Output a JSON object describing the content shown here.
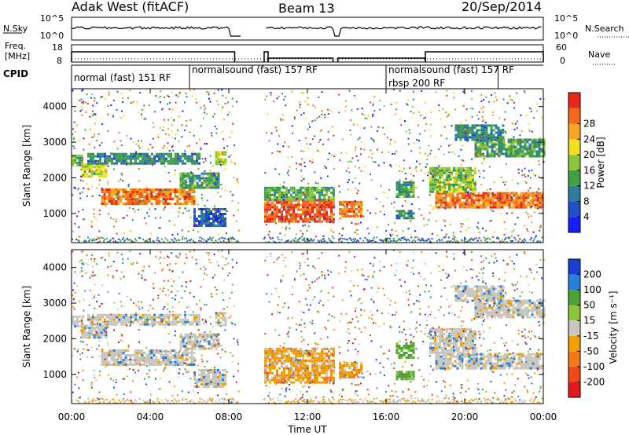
{
  "header": {
    "station": "Adak West (fitACF)",
    "beam": "Beam 13",
    "date": "20/Sep/2014"
  },
  "labels": {
    "nsky": "N.Sky",
    "freq_line1": "Freq.",
    "freq_line2": "[MHz]",
    "cpid": "CPID",
    "nsearch": "N.Search",
    "nave": "Nave",
    "slant_range": "Slant Range [km]",
    "time_ut": "Time UT",
    "power_label": "Power [dB]",
    "velocity_label": "Velocity [m s⁻¹]"
  },
  "noise_axis": {
    "left_top": "10^5",
    "left_bottom": "10^0",
    "right_top": "10^5",
    "right_bottom": "10^0"
  },
  "freq_axis": {
    "left_top": "18",
    "left_bottom": "8",
    "right_top": "60",
    "right_bottom": "0"
  },
  "cpid_segments": [
    {
      "label": "normal (fast) 151 RF",
      "start": 0.0,
      "end": 6.0
    },
    {
      "label": "normalsound (fast) 157 RF",
      "start": 6.0,
      "end": 16.0
    },
    {
      "label": "rbsp 200 RF",
      "start": 16.0,
      "end": 18.0
    },
    {
      "label": "normalsound (fast) 157 RF",
      "start": 16.0,
      "end": 21.7
    }
  ],
  "chart_data": [
    {
      "type": "heatmap",
      "name": "power",
      "xlabel": "Time UT",
      "ylabel": "Slant Range [km]",
      "xlim": [
        0,
        24
      ],
      "ylim": [
        180,
        4500
      ],
      "y_ticks": [
        "1000",
        "2000",
        "3000",
        "4000"
      ],
      "colorbar": {
        "label": "Power [dB]",
        "range": [
          0,
          32
        ],
        "ticks": [
          "4",
          "8",
          "12",
          "16",
          "20",
          "24",
          "28"
        ],
        "colors": [
          "#1a1aff",
          "#1f50c8",
          "#2e7d9c",
          "#3fa046",
          "#8cc63f",
          "#f0e01e",
          "#f5a623",
          "#f26b1d",
          "#e8281a"
        ]
      },
      "bands": [
        {
          "t0": 0.0,
          "t1": 0.5,
          "r0": 2350,
          "r1": 2650,
          "level": 14
        },
        {
          "t0": 0.5,
          "t1": 1.8,
          "r0": 2050,
          "r1": 2400,
          "level": 18
        },
        {
          "t0": 1.5,
          "t1": 6.3,
          "r0": 1250,
          "r1": 1700,
          "level": 26
        },
        {
          "t0": 5.5,
          "t1": 7.5,
          "r0": 1700,
          "r1": 2150,
          "level": 12
        },
        {
          "t0": 0.8,
          "t1": 6.5,
          "r0": 2400,
          "r1": 2700,
          "level": 10
        },
        {
          "t0": 6.2,
          "t1": 7.8,
          "r0": 650,
          "r1": 1150,
          "level": 6
        },
        {
          "t0": 7.3,
          "t1": 7.9,
          "r0": 2400,
          "r1": 2750,
          "level": 18
        },
        {
          "t0": 9.8,
          "t1": 13.3,
          "r0": 800,
          "r1": 1400,
          "level": 28
        },
        {
          "t0": 9.8,
          "t1": 13.3,
          "r0": 1400,
          "r1": 1750,
          "level": 14
        },
        {
          "t0": 13.6,
          "t1": 14.8,
          "r0": 900,
          "r1": 1350,
          "level": 26
        },
        {
          "t0": 16.5,
          "t1": 17.4,
          "r0": 1500,
          "r1": 1900,
          "level": 12
        },
        {
          "t0": 16.5,
          "t1": 17.4,
          "r0": 900,
          "r1": 1100,
          "level": 10
        },
        {
          "t0": 18.5,
          "t1": 24.0,
          "r0": 1200,
          "r1": 1600,
          "level": 26
        },
        {
          "t0": 18.2,
          "t1": 20.5,
          "r0": 1600,
          "r1": 2300,
          "level": 16
        },
        {
          "t0": 20.5,
          "t1": 24.0,
          "r0": 2600,
          "r1": 3100,
          "level": 12
        },
        {
          "t0": 19.5,
          "t1": 22.0,
          "r0": 3100,
          "r1": 3500,
          "level": 10
        }
      ]
    },
    {
      "type": "heatmap",
      "name": "velocity",
      "xlabel": "Time UT",
      "ylabel": "Slant Range [km]",
      "xlim": [
        0,
        24
      ],
      "ylim": [
        180,
        4500
      ],
      "x_ticks": [
        "00:00",
        "04:00",
        "08:00",
        "12:00",
        "16:00",
        "20:00",
        "00:00"
      ],
      "y_ticks": [
        "1000",
        "2000",
        "3000",
        "4000"
      ],
      "colorbar": {
        "label": "Velocity [m s⁻¹]",
        "ticks": [
          "200",
          "100",
          "50",
          "15",
          "-15",
          "-50",
          "-100",
          "-200"
        ],
        "colors": [
          "#1a3fd0",
          "#2a7fd8",
          "#4da03a",
          "#8cc63f",
          "#c8c8c0",
          "#f0a000",
          "#f57a1a",
          "#f04a1a",
          "#e01a1a"
        ]
      }
    }
  ]
}
